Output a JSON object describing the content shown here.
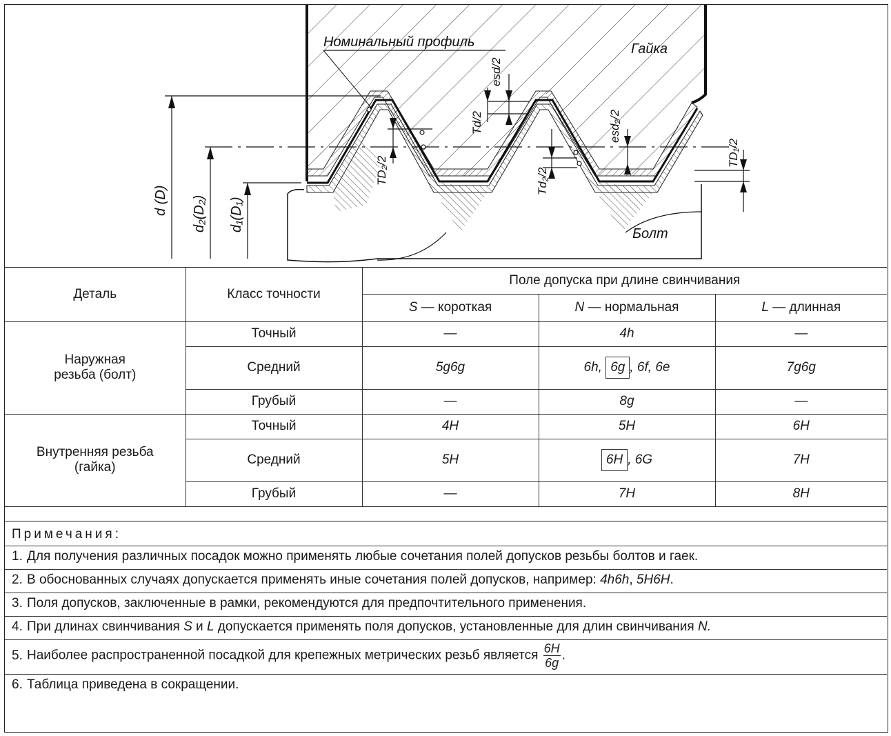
{
  "diagram": {
    "nominal_profile": "Номинальный профиль",
    "nut": "Гайка",
    "bolt": "Болт",
    "d_D": "d (D)",
    "d2_D2": "d₂(D₂)",
    "d1_D1": "d₁(D₁)",
    "T_d": "Td/2",
    "T_D2": "TD₂/2",
    "T_d2": "Td₂/2",
    "T_D1": "TD₁/2",
    "es_d": "esd/2",
    "es_d2": "esd₂/2"
  },
  "table": {
    "headers": {
      "part": "Деталь",
      "accuracy_class": "Класс точности",
      "tolerance_field": "Поле допуска при длине свинчивания",
      "s": "S — короткая",
      "n": "N — нормальная",
      "l": "L — длинная"
    },
    "groups": [
      {
        "part": "Наружная резьба (болт)",
        "rows": [
          {
            "class": "Точный",
            "s": "—",
            "n": "4h",
            "l": "—"
          },
          {
            "class": "Средний",
            "s": "5g6g",
            "n_pre": "6h,",
            "n_box": "6g",
            "n_post": ", 6f, 6e",
            "l": "7g6g"
          },
          {
            "class": "Грубый",
            "s": "—",
            "n": "8g",
            "l": "—"
          }
        ]
      },
      {
        "part": "Внутренняя резьба (гайка)",
        "rows": [
          {
            "class": "Точный",
            "s": "4H",
            "n": "5H",
            "l": "6H"
          },
          {
            "class": "Средний",
            "s": "5H",
            "n_box": "6H",
            "n_post": ", 6G",
            "l": "7H"
          },
          {
            "class": "Грубый",
            "s": "—",
            "n": "7H",
            "l": "8H"
          }
        ]
      }
    ]
  },
  "notes": {
    "heading": "Примечания:",
    "items": [
      {
        "num": "1.",
        "text": "Для получения различных посадок можно применять любые сочетания полей допусков резьбы болтов и гаек."
      },
      {
        "num": "2.",
        "text": "В обоснованных случаях допускается применять иные сочетания полей допусков, например: ",
        "ex1": "4h6h",
        "sep": ", ",
        "ex2": "5H6H",
        "end": "."
      },
      {
        "num": "3.",
        "text": "Поля допусков, заключенные в рамки, рекомендуются для предпочтительного применения."
      },
      {
        "num": "4.",
        "text_a": "При длинах свинчивания ",
        "S": "S",
        "and": " и ",
        "L": "L",
        "text_b": " допускается применять поля допусков, установленные для длин свинчивания ",
        "N": "N."
      },
      {
        "num": "5.",
        "text": "Наиболее распространенной посадкой для крепежных метрических резьб является ",
        "frac_top": "6H",
        "frac_bottom": "6g",
        "end": "."
      },
      {
        "num": "6.",
        "text": "Таблица приведена в сокращении."
      }
    ]
  }
}
